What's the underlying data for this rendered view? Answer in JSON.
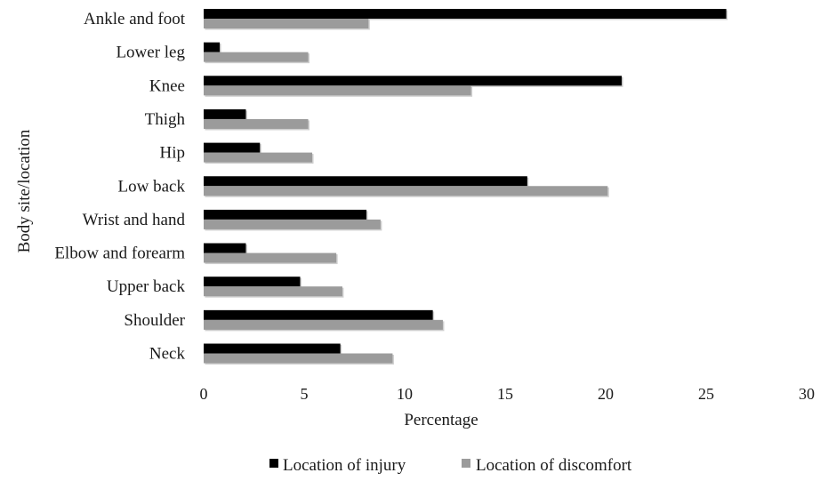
{
  "chart_data": {
    "type": "bar",
    "orientation": "horizontal",
    "title": "",
    "xlabel": "Percentage",
    "ylabel": "Body site/location",
    "xlim": [
      0,
      30
    ],
    "xticks": [
      "0",
      "5",
      "10",
      "15",
      "20",
      "25",
      "30"
    ],
    "grid": false,
    "legend_position": "bottom",
    "categories": [
      "Ankle and foot",
      "Lower leg",
      "Knee",
      "Thigh",
      "Hip",
      "Low back",
      "Wrist and hand",
      "Elbow and forearm",
      "Upper back",
      "Shoulder",
      "Neck"
    ],
    "series": [
      {
        "name": "Location of injury",
        "color": "#000000",
        "values": [
          26.0,
          0.8,
          20.8,
          2.1,
          2.8,
          16.1,
          8.1,
          2.1,
          4.8,
          11.4,
          6.8
        ]
      },
      {
        "name": "Location of discomfort",
        "color": "#9b9b9b",
        "values": [
          8.2,
          5.2,
          13.3,
          5.2,
          5.4,
          20.1,
          8.8,
          6.6,
          6.9,
          11.9,
          9.4
        ]
      }
    ]
  }
}
